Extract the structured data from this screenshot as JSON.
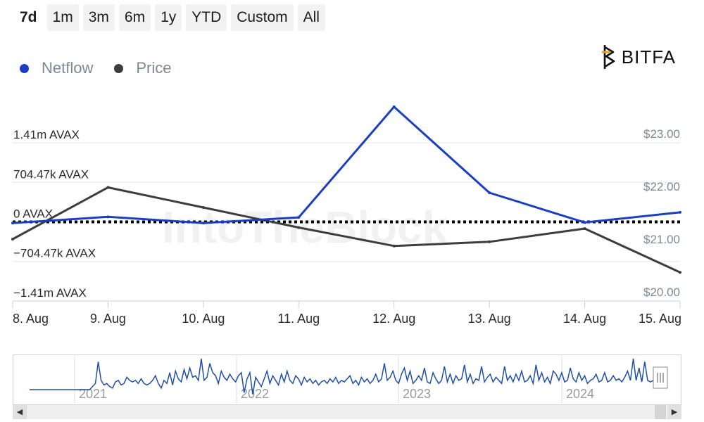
{
  "range_selector": {
    "buttons": [
      "7d",
      "1m",
      "3m",
      "6m",
      "1y",
      "YTD",
      "Custom",
      "All"
    ],
    "active": "7d"
  },
  "logo": {
    "text": "BITFA"
  },
  "watermark": "IntoTheBlock",
  "colors": {
    "netflow": "#1a3fc4",
    "price": "#3d3d3d",
    "zero_line": "#000000",
    "navigator_line": "#1f4fa8"
  },
  "chart_data": {
    "type": "line",
    "title": "",
    "categories": [
      "8. Aug",
      "9. Aug",
      "10. Aug",
      "11. Aug",
      "12. Aug",
      "13. Aug",
      "14. Aug",
      "15. Aug"
    ],
    "series": [
      {
        "name": "Netflow",
        "axis": "left",
        "color": "#1a3fc4",
        "values": [
          -0.02,
          0.09,
          -0.02,
          0.08,
          2.05,
          0.52,
          -0.01,
          0.17
        ],
        "unit": "m AVAX"
      },
      {
        "name": "Price",
        "axis": "right",
        "color": "#3d3d3d",
        "values": [
          21.0,
          21.98,
          21.6,
          21.22,
          20.87,
          20.95,
          21.2,
          20.37
        ],
        "unit": "$"
      }
    ],
    "y_left": {
      "ticks": [
        1.41,
        0.70447,
        0,
        -0.70447,
        -1.41
      ],
      "tick_labels": [
        "1.41m AVAX",
        "704.47k AVAX",
        "0 AVAX",
        "−704.47k AVAX",
        "−1.41m AVAX"
      ],
      "range": [
        -1.41,
        1.41
      ]
    },
    "y_right": {
      "ticks": [
        23,
        22,
        21,
        20
      ],
      "tick_labels": [
        "$23.00",
        "$22.00",
        "$21.00",
        "$20.00"
      ],
      "range": [
        20,
        23
      ]
    },
    "zero_line": "dotted",
    "grid": true,
    "legend": "top-left",
    "navigator": {
      "year_labels": [
        "2021",
        "2022",
        "2023",
        "2024"
      ],
      "values": [
        0,
        0,
        0,
        0,
        0,
        0,
        0,
        0,
        0,
        0,
        0,
        0,
        0,
        0,
        0,
        0,
        0,
        0,
        0,
        0,
        0,
        0,
        0.1,
        0.2,
        0.9,
        0.3,
        0.15,
        0.2,
        0.1,
        0.05,
        0.25,
        0.3,
        0.15,
        0.2,
        0.4,
        0.3,
        0.25,
        0.3,
        0.2,
        0.35,
        0.2,
        0.15,
        0.2,
        0.3,
        0.45,
        0.2,
        0.05,
        0.3,
        0.2,
        0.55,
        0.15,
        0.6,
        0.35,
        0.25,
        0.65,
        0.35,
        0.7,
        0.4,
        0.45,
        0.3,
        1.0,
        0.3,
        0.4,
        0.85,
        0.55,
        0.45,
        0.2,
        0.6,
        0.4,
        0.3,
        0.5,
        0.35,
        0.25,
        0.45,
        0.55,
        -0.1,
        0.35,
        0.55,
        -0.15,
        0.4,
        0.25,
        0.1,
        0.35,
        0.6,
        0.2,
        0.45,
        0.3,
        0.15,
        0.5,
        0.25,
        0.6,
        0.3,
        0.2,
        0.45,
        0.35,
        0.15,
        0.4,
        0.25,
        0.35,
        0.2,
        0.3,
        0.15,
        0.25,
        0.3,
        0.2,
        0.35,
        0.25,
        0.4,
        0.2,
        0.3,
        0.25,
        0.35,
        0.45,
        0.2,
        0.3,
        0.15,
        0.4,
        0.25,
        0.35,
        0.2,
        0.3,
        0.5,
        0.25,
        0.35,
        0.85,
        0.3,
        0.4,
        0.6,
        0.3,
        0.2,
        0.5,
        0.7,
        0.3,
        0.6,
        0.2,
        0.3,
        0.45,
        0.3,
        0.7,
        0.25,
        0.2,
        0.55,
        0.35,
        0.2,
        0.3,
        0.75,
        0.25,
        0.5,
        0.2,
        0.45,
        0.3,
        0.35,
        0.8,
        0.25,
        0.5,
        0.2,
        0.35,
        0.3,
        0.75,
        0.25,
        0.4,
        0.5,
        0.25,
        0.4,
        0.3,
        0.2,
        0.75,
        0.3,
        0.45,
        0.25,
        0.5,
        0.3,
        0.6,
        0.25,
        0.3,
        0.45,
        0.2,
        0.8,
        0.3,
        0.55,
        0.25,
        0.4,
        0.2,
        0.6,
        0.5,
        0.3,
        0.55,
        0.25,
        0.3,
        0.7,
        0.35,
        0.25,
        0.55,
        0.3,
        0.45,
        0.2,
        0.3,
        0.35,
        0.5,
        0.25,
        0.3,
        0.55,
        0.25,
        0.3,
        0.45,
        0.3,
        0.35,
        0.25,
        0.4,
        0.6,
        0.3,
        1.0,
        0.3,
        0.7,
        0.25,
        0.9,
        0.3,
        0.25,
        0.3
      ]
    }
  }
}
